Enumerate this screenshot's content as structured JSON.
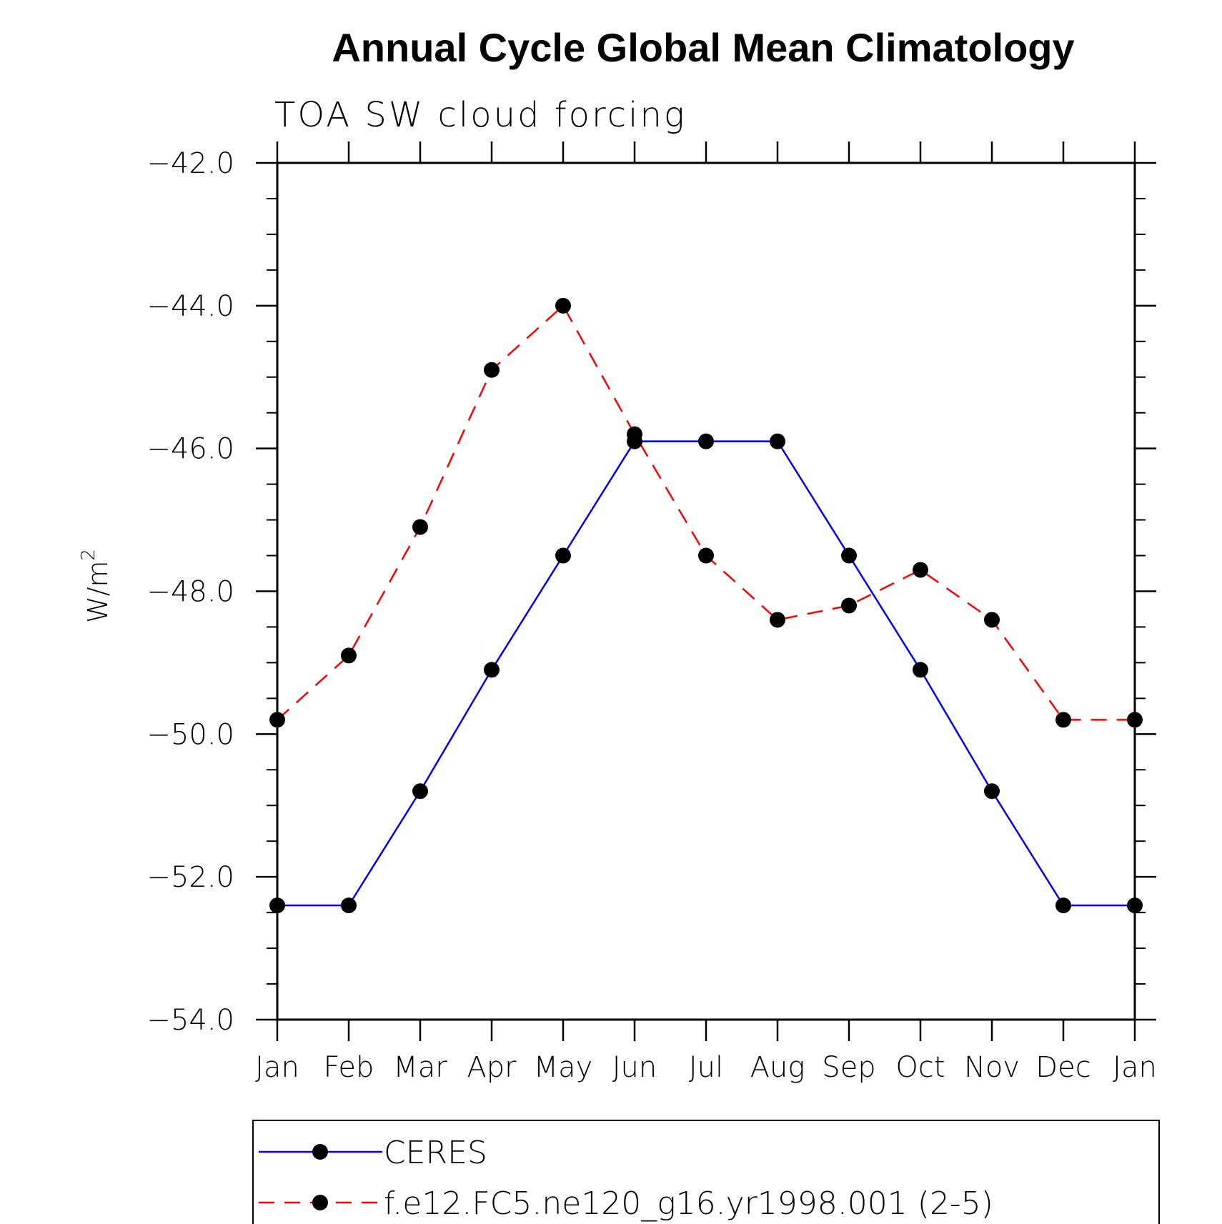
{
  "chart_data": {
    "type": "line",
    "title": "Annual Cycle Global Mean Climatology",
    "subtitle": "TOA SW cloud forcing",
    "ylabel": "W/m",
    "ylabel_sup": "2",
    "xlabel": "",
    "ylim": [
      -54.0,
      -42.0
    ],
    "yticks": [
      "-42.0",
      "-44.0",
      "-46.0",
      "-48.0",
      "-50.0",
      "-52.0",
      "-54.0"
    ],
    "categories": [
      "Jan",
      "Feb",
      "Mar",
      "Apr",
      "May",
      "Jun",
      "Jul",
      "Aug",
      "Sep",
      "Oct",
      "Nov",
      "Dec",
      "Jan"
    ],
    "grid": false,
    "legend_position": "bottom",
    "series": [
      {
        "name": "CERES",
        "color": "#0000ff",
        "style": "solid",
        "values": [
          -52.4,
          -52.4,
          -50.8,
          -49.1,
          -47.5,
          -45.9,
          -45.9,
          -45.9,
          -47.5,
          -49.1,
          -50.8,
          -52.4,
          -52.4
        ]
      },
      {
        "name": "f.e12.FC5.ne120_g16.yr1998.001 (2-5)",
        "color": "#ff0000",
        "style": "dashed",
        "values": [
          -49.8,
          -48.9,
          -47.1,
          -44.9,
          -44.0,
          -45.8,
          -47.5,
          -48.4,
          -48.2,
          -47.7,
          -48.4,
          -49.8,
          -49.8
        ]
      }
    ]
  }
}
